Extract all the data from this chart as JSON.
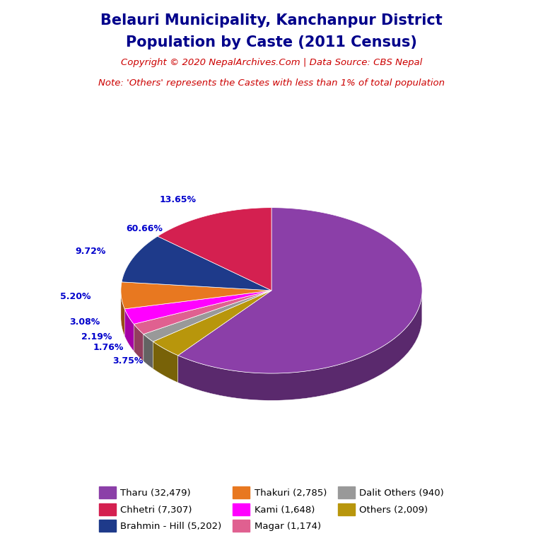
{
  "title_line1": "Belauri Municipality, Kanchanpur District",
  "title_line2": "Population by Caste (2011 Census)",
  "copyright_text": "Copyright © 2020 NepalArchives.Com | Data Source: CBS Nepal",
  "note_text": "Note: 'Others' represents the Castes with less than 1% of total population",
  "labels": [
    "Tharu",
    "Chhetri",
    "Brahmin - Hill",
    "Thakuri",
    "Kami",
    "Magar",
    "Dalit Others",
    "Others"
  ],
  "values": [
    32479,
    7307,
    5202,
    2785,
    1648,
    1174,
    940,
    2009
  ],
  "percentages": [
    "60.66%",
    "13.65%",
    "9.72%",
    "5.20%",
    "3.08%",
    "2.19%",
    "1.76%",
    "3.75%"
  ],
  "colors": [
    "#8B3FA8",
    "#D42050",
    "#1E3A8A",
    "#E87820",
    "#FF00FF",
    "#E06090",
    "#999999",
    "#B8960C"
  ],
  "legend_labels": [
    "Tharu (32,479)",
    "Chhetri (7,307)",
    "Brahmin - Hill (5,202)",
    "Thakuri (2,785)",
    "Kami (1,648)",
    "Magar (1,174)",
    "Dalit Others (940)",
    "Others (2,009)"
  ],
  "title_color": "#00008B",
  "copyright_color": "#CC0000",
  "note_color": "#CC0000",
  "pct_color": "#0000CC",
  "background_color": "#FFFFFF"
}
